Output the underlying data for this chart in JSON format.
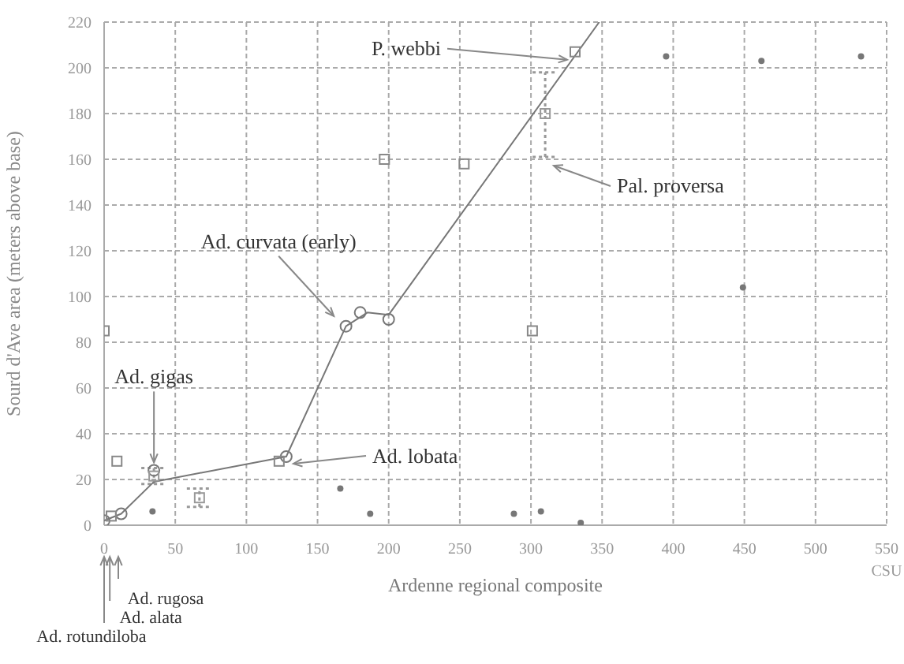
{
  "chart_data": {
    "type": "scatter",
    "xlabel": "Ardenne regional composite",
    "ylabel": "Sourd d'Ave area (meters above base)",
    "xlim": [
      0,
      550
    ],
    "xticks": [
      0,
      50,
      100,
      150,
      200,
      250,
      300,
      350,
      400,
      450,
      500,
      {
        "value": 550,
        "label": "550 CSU"
      }
    ],
    "ylim": [
      0,
      220
    ],
    "yticks": [
      0,
      20,
      40,
      60,
      80,
      100,
      120,
      140,
      160,
      180,
      200,
      220
    ],
    "grid": true,
    "series": [
      {
        "type": "line",
        "color": "#777777",
        "line_style": "solid",
        "marker": "none",
        "x": [
          0,
          12,
          35,
          128,
          170,
          185,
          200,
          348
        ],
        "values": [
          2,
          5,
          19,
          30,
          87,
          93,
          92,
          220
        ]
      },
      {
        "type": "scatter",
        "color": "#777777",
        "marker": "circle",
        "x": [
          0,
          12,
          35,
          128,
          170,
          180,
          200
        ],
        "values": [
          2,
          5,
          24,
          30,
          87,
          93,
          90
        ]
      },
      {
        "type": "scatter",
        "color": "#888888",
        "marker": "square",
        "x": [
          0,
          9,
          123,
          197,
          253,
          301,
          331,
          5
        ],
        "values": [
          85,
          28,
          28,
          160,
          158,
          85,
          207,
          4
        ]
      },
      {
        "type": "scatter",
        "color": "#777777",
        "marker": "circle",
        "x": [
          34,
          166,
          187,
          288,
          307,
          335,
          395,
          462,
          532,
          449
        ],
        "values": [
          6,
          16,
          5,
          5,
          6,
          1,
          205,
          203,
          205,
          104
        ]
      },
      {
        "type": "scatter",
        "color": "#999999",
        "marker": "square",
        "x": [
          35,
          67,
          310
        ],
        "values": [
          21.5,
          12,
          180
        ],
        "errors": [
          [
            18,
            25
          ],
          [
            8,
            16
          ],
          [
            161,
            198
          ]
        ]
      }
    ],
    "annotations": [
      {
        "text": "P. webbi",
        "x": 331,
        "y": 207
      },
      "Pal. proversa",
      {
        "text": "Ad. curvata (early)",
        "x": 167,
        "y": 88
      },
      {
        "text": "Ad. gigas",
        "x": 35,
        "y": 24
      },
      "Ad. lobata",
      "Ad. rugosa",
      "Ad. alata",
      "Ad. rotundiloba"
    ]
  }
}
